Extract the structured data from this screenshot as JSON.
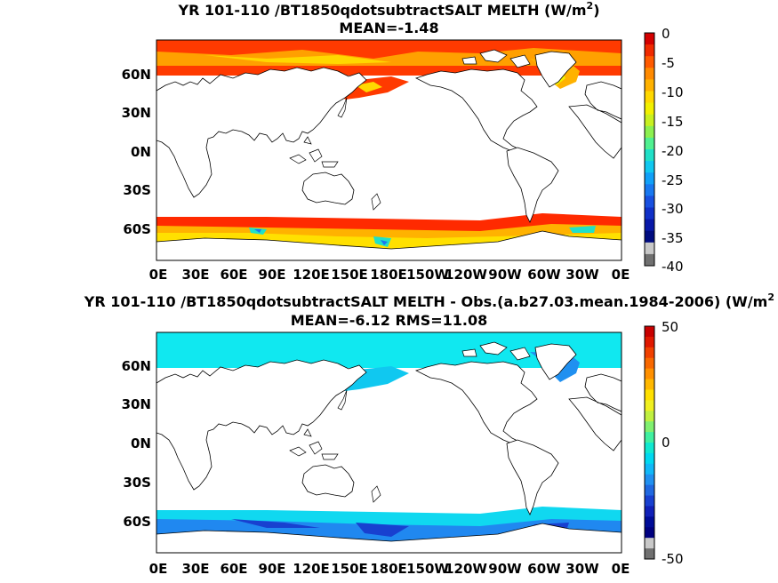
{
  "panel_top": {
    "title": "YR 101-110 /BT1850qdotsubtractSALT  MELTH (W/m",
    "title_sup": "2",
    "title_close": ")",
    "subtitle": "MEAN=-1.48",
    "colorbar": {
      "labels": [
        "0",
        "-5",
        "-10",
        "-15",
        "-20",
        "-25",
        "-30",
        "-35",
        "-40"
      ],
      "colors": [
        "#d40000",
        "#f02a00",
        "#ff5a00",
        "#ff8a00",
        "#ffb200",
        "#ffd800",
        "#f2f000",
        "#c8f020",
        "#8cf050",
        "#50f090",
        "#20e0c8",
        "#10c8f0",
        "#10a0f8",
        "#1878f0",
        "#1850e0",
        "#1030c8",
        "#0818a8",
        "#000c80",
        "#c8c8c8",
        "#707070"
      ]
    }
  },
  "panel_bottom": {
    "title": "YR 101-110 /BT1850qdotsubtractSALT MELTH - Obs.(a.b27.03.mean.1984-2006) (W/m",
    "title_sup": "2",
    "subtitle": "MEAN=-6.12 RMS=11.08",
    "colorbar": {
      "labels": [
        "50",
        "0",
        "-50"
      ],
      "colors": [
        "#c80000",
        "#e01800",
        "#f04000",
        "#f86800",
        "#ff9000",
        "#ffb800",
        "#ffe000",
        "#f0f020",
        "#c0f040",
        "#80f070",
        "#40f0a0",
        "#10e8d0",
        "#00d8f0",
        "#10b8f8",
        "#2090f0",
        "#2068e0",
        "#1840d0",
        "#1020b8",
        "#000c98",
        "#000080",
        "#c8c8c8",
        "#707070"
      ]
    }
  },
  "axes": {
    "lat_labels": [
      "60N",
      "30N",
      "0N",
      "30S",
      "60S"
    ],
    "lon_labels": [
      "0E",
      "30E",
      "60E",
      "90E",
      "120E",
      "150E",
      "180E",
      "150W",
      "120W",
      "90W",
      "60W",
      "30W",
      "0E"
    ]
  }
}
